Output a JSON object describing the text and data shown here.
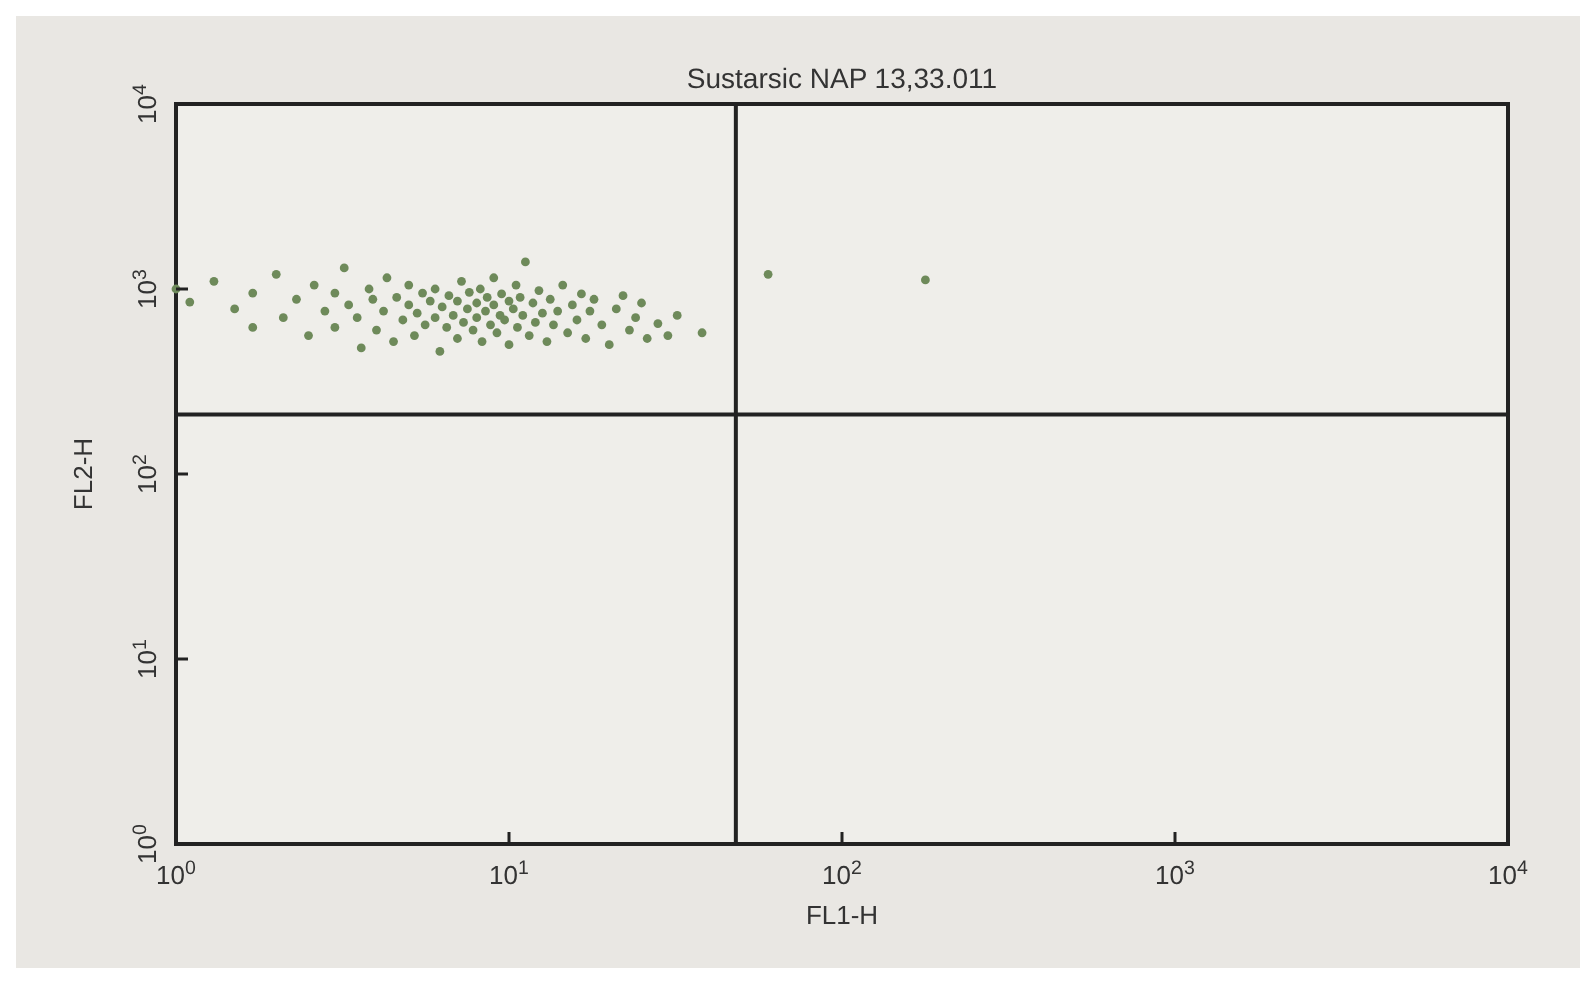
{
  "chart_data": {
    "type": "scatter",
    "title": "Sustarsic NAP 13,33.011",
    "xlabel": "FL1-H",
    "ylabel": "FL2-H",
    "log": "xy",
    "grid": false,
    "marker": "circle",
    "xlim": [
      1,
      10000
    ],
    "ylim": [
      1,
      10000
    ],
    "xticks": [
      {
        "value": 1,
        "label": "10$^{0}$"
      },
      {
        "value": 10,
        "label": "10$^{1}$"
      },
      {
        "value": 100,
        "label": "10$^{2}$"
      },
      {
        "value": 1000,
        "label": "10$^{3}$"
      },
      {
        "value": 10000,
        "label": "10$^{4}$"
      }
    ],
    "yticks": [
      {
        "value": 1,
        "label": "10$^{0}$"
      },
      {
        "value": 10,
        "label": "10$^{1}$"
      },
      {
        "value": 100,
        "label": "10$^{2}$"
      },
      {
        "value": 1000,
        "label": "10$^{3}$"
      },
      {
        "value": 10000,
        "label": "10$^{4}$"
      }
    ],
    "ref_lines": [
      {
        "axis": "x",
        "value": 48,
        "color": "#222222"
      },
      {
        "axis": "y",
        "value": 210,
        "color": "#222222"
      }
    ],
    "series": [
      {
        "color": "#6e8a5a",
        "x": [
          1.0,
          1.1,
          1.3,
          1.5,
          1.7,
          1.7,
          2.0,
          2.1,
          2.3,
          2.5,
          2.6,
          2.8,
          3.0,
          3.0,
          3.2,
          3.3,
          3.5,
          3.6,
          3.8,
          3.9,
          4.0,
          4.2,
          4.3,
          4.5,
          4.6,
          4.8,
          5.0,
          5.0,
          5.2,
          5.3,
          5.5,
          5.6,
          5.8,
          6.0,
          6.0,
          6.2,
          6.3,
          6.5,
          6.6,
          6.8,
          7.0,
          7.0,
          7.2,
          7.3,
          7.5,
          7.6,
          7.8,
          8.0,
          8.0,
          8.2,
          8.3,
          8.5,
          8.6,
          8.8,
          9.0,
          9.0,
          9.2,
          9.4,
          9.5,
          9.7,
          10,
          10,
          10.3,
          10.5,
          10.6,
          10.8,
          11,
          11.2,
          11.5,
          11.8,
          12,
          12.3,
          12.6,
          13,
          13.3,
          13.6,
          14,
          14.5,
          15,
          15.5,
          16,
          16.5,
          17,
          17.5,
          18,
          19,
          20,
          21,
          22,
          23,
          24,
          25,
          26,
          28,
          30,
          32,
          38,
          60,
          178
        ],
        "values": [
          1000,
          850,
          1100,
          780,
          950,
          620,
          1200,
          700,
          880,
          560,
          1050,
          760,
          950,
          620,
          1300,
          820,
          700,
          480,
          1000,
          880,
          600,
          760,
          1150,
          520,
          900,
          680,
          820,
          1050,
          560,
          740,
          950,
          640,
          860,
          700,
          1000,
          460,
          800,
          620,
          920,
          720,
          860,
          540,
          1100,
          660,
          780,
          960,
          600,
          840,
          700,
          1000,
          520,
          760,
          900,
          640,
          820,
          1150,
          580,
          720,
          940,
          680,
          860,
          500,
          780,
          1050,
          620,
          900,
          720,
          1400,
          560,
          840,
          660,
          980,
          740,
          520,
          880,
          640,
          760,
          1050,
          580,
          820,
          680,
          940,
          540,
          760,
          880,
          640,
          500,
          780,
          920,
          600,
          700,
          840,
          540,
          650,
          560,
          720,
          580,
          1200,
          1120
        ]
      }
    ]
  }
}
